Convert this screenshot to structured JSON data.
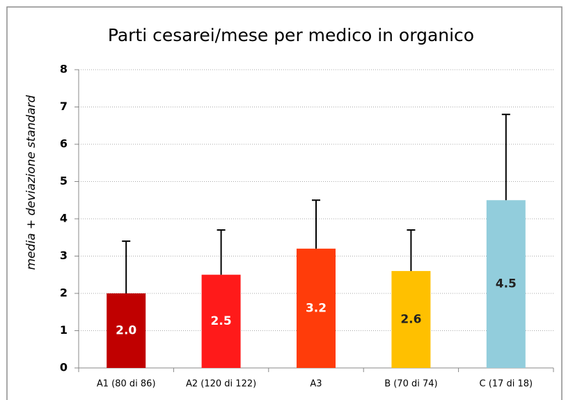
{
  "chart_data": {
    "type": "bar",
    "title": "Parti cesarei/mese per medico in organico",
    "y_label": "media + deviazione standard",
    "categories": [
      "A1 (80 di 86)",
      "A2 (120 di 122)",
      "A3",
      "B (70 di 74)",
      "C (17 di 18)"
    ],
    "values": [
      2.0,
      2.5,
      3.2,
      2.6,
      4.5
    ],
    "value_labels": [
      "2.0",
      "2.5",
      "3.2",
      "2.6",
      "4.5"
    ],
    "errors": [
      1.4,
      1.2,
      1.3,
      1.1,
      2.3
    ],
    "colors": [
      "#c00000",
      "#ff1a1a",
      "#ff3c0a",
      "#ffc000",
      "#92cddc"
    ],
    "label_colors": [
      "#ffffff",
      "#ffffff",
      "#ffffff",
      "#222222",
      "#222222"
    ],
    "ylim": [
      0,
      8
    ],
    "yticks": [
      0,
      1,
      2,
      3,
      4,
      5,
      6,
      7,
      8
    ],
    "grid": true
  }
}
